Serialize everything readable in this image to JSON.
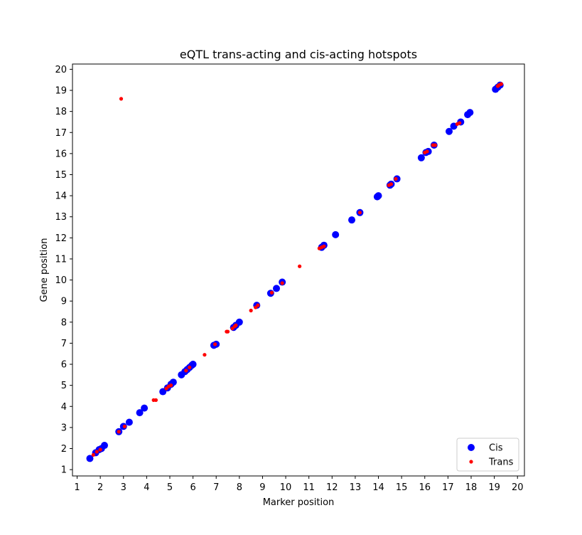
{
  "chart_data": {
    "type": "scatter",
    "title": "eQTL trans-acting and cis-acting hotspots",
    "xlabel": "Marker position",
    "ylabel": "Gene position",
    "xlim": [
      0.8,
      20.3
    ],
    "ylim": [
      0.7,
      20.25
    ],
    "xticks": [
      "1",
      "2",
      "3",
      "4",
      "5",
      "6",
      "7",
      "8",
      "9",
      "10",
      "11",
      "12",
      "13",
      "14",
      "15",
      "16",
      "17",
      "18",
      "19",
      "20"
    ],
    "yticks": [
      "1",
      "2",
      "3",
      "4",
      "5",
      "6",
      "7",
      "8",
      "9",
      "10",
      "11",
      "12",
      "13",
      "14",
      "15",
      "16",
      "17",
      "18",
      "19",
      "20"
    ],
    "grid": false,
    "legend_position": "bottom-right",
    "series": [
      {
        "name": "Cis",
        "color": "#0000ff",
        "marker": "large-dot",
        "points": [
          [
            1.55,
            1.53
          ],
          [
            1.8,
            1.8
          ],
          [
            1.95,
            1.95
          ],
          [
            2.05,
            2.0
          ],
          [
            2.18,
            2.15
          ],
          [
            2.8,
            2.8
          ],
          [
            3.0,
            3.05
          ],
          [
            3.25,
            3.25
          ],
          [
            3.7,
            3.7
          ],
          [
            3.9,
            3.92
          ],
          [
            4.7,
            4.7
          ],
          [
            4.9,
            4.88
          ],
          [
            5.05,
            5.05
          ],
          [
            5.15,
            5.15
          ],
          [
            5.5,
            5.5
          ],
          [
            5.65,
            5.65
          ],
          [
            5.75,
            5.75
          ],
          [
            5.85,
            5.85
          ],
          [
            5.95,
            5.95
          ],
          [
            6.0,
            6.0
          ],
          [
            6.9,
            6.9
          ],
          [
            7.0,
            6.95
          ],
          [
            7.75,
            7.75
          ],
          [
            7.85,
            7.85
          ],
          [
            8.0,
            8.0
          ],
          [
            8.75,
            8.8
          ],
          [
            9.35,
            9.37
          ],
          [
            9.6,
            9.6
          ],
          [
            9.85,
            9.9
          ],
          [
            11.55,
            11.55
          ],
          [
            11.65,
            11.65
          ],
          [
            12.15,
            12.15
          ],
          [
            12.85,
            12.85
          ],
          [
            13.2,
            13.2
          ],
          [
            13.95,
            13.95
          ],
          [
            14.0,
            14.0
          ],
          [
            14.5,
            14.5
          ],
          [
            14.55,
            14.55
          ],
          [
            14.8,
            14.8
          ],
          [
            15.85,
            15.8
          ],
          [
            16.05,
            16.05
          ],
          [
            16.15,
            16.1
          ],
          [
            16.4,
            16.4
          ],
          [
            17.05,
            17.05
          ],
          [
            17.25,
            17.3
          ],
          [
            17.55,
            17.5
          ],
          [
            17.85,
            17.85
          ],
          [
            17.95,
            17.95
          ],
          [
            19.05,
            19.05
          ],
          [
            19.15,
            19.15
          ],
          [
            19.25,
            19.25
          ]
        ]
      },
      {
        "name": "Trans",
        "color": "#ff0000",
        "marker": "small-dot",
        "points": [
          [
            1.7,
            1.7
          ],
          [
            1.85,
            1.85
          ],
          [
            2.0,
            1.95
          ],
          [
            2.8,
            2.8
          ],
          [
            2.9,
            18.6
          ],
          [
            3.05,
            3.05
          ],
          [
            4.3,
            4.3
          ],
          [
            4.4,
            4.3
          ],
          [
            4.85,
            4.85
          ],
          [
            4.95,
            4.95
          ],
          [
            5.05,
            5.0
          ],
          [
            5.7,
            5.7
          ],
          [
            5.85,
            5.85
          ],
          [
            6.5,
            6.45
          ],
          [
            6.95,
            6.95
          ],
          [
            7.45,
            7.55
          ],
          [
            7.5,
            7.55
          ],
          [
            7.7,
            7.7
          ],
          [
            7.8,
            7.8
          ],
          [
            7.85,
            7.85
          ],
          [
            8.5,
            8.55
          ],
          [
            8.7,
            8.7
          ],
          [
            8.8,
            8.8
          ],
          [
            9.4,
            9.4
          ],
          [
            9.85,
            9.85
          ],
          [
            10.6,
            10.65
          ],
          [
            11.45,
            11.5
          ],
          [
            11.55,
            11.55
          ],
          [
            11.65,
            11.6
          ],
          [
            13.2,
            13.2
          ],
          [
            14.45,
            14.5
          ],
          [
            14.55,
            14.55
          ],
          [
            14.75,
            14.8
          ],
          [
            16.0,
            16.05
          ],
          [
            16.1,
            16.1
          ],
          [
            16.35,
            16.4
          ],
          [
            16.45,
            16.4
          ],
          [
            17.4,
            17.4
          ],
          [
            17.5,
            17.45
          ],
          [
            19.15,
            19.2
          ],
          [
            19.2,
            19.25
          ],
          [
            19.3,
            19.3
          ]
        ]
      }
    ]
  }
}
